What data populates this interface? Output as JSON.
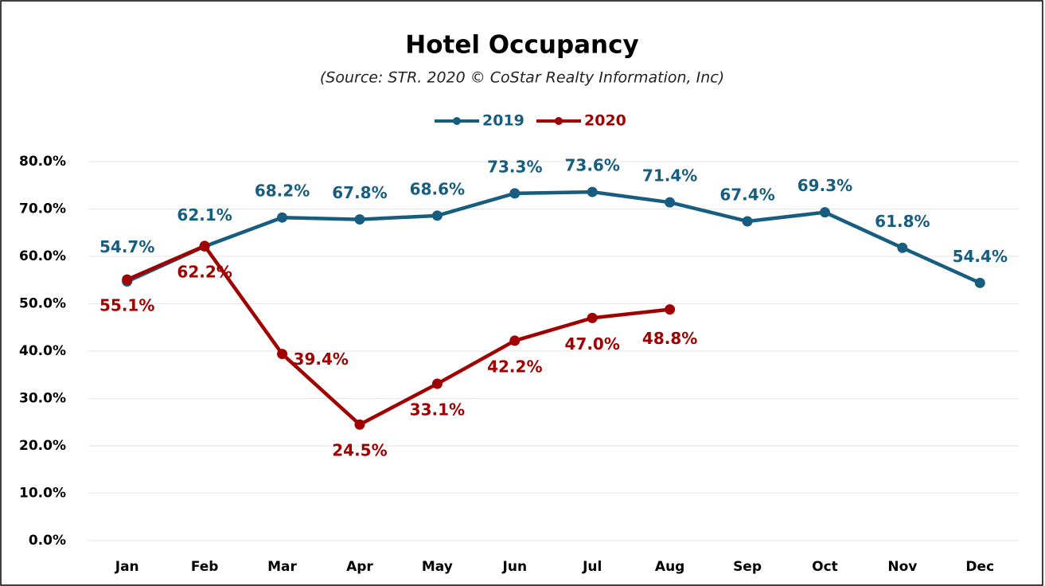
{
  "chart_data": {
    "type": "line",
    "title": "Hotel Occupancy",
    "subtitle": "(Source: STR. 2020 © CoStar Realty Information, Inc)",
    "categories": [
      "Jan",
      "Feb",
      "Mar",
      "Apr",
      "May",
      "Jun",
      "Jul",
      "Aug",
      "Sep",
      "Oct",
      "Nov",
      "Dec"
    ],
    "series": [
      {
        "name": "2019",
        "color": "#175d80",
        "values": [
          54.7,
          62.1,
          68.2,
          67.8,
          68.6,
          73.3,
          73.6,
          71.4,
          67.4,
          69.3,
          61.8,
          54.4
        ],
        "value_labels": [
          "54.7%",
          "62.1%",
          "68.2%",
          "67.8%",
          "68.6%",
          "73.3%",
          "73.6%",
          "71.4%",
          "67.4%",
          "69.3%",
          "61.8%",
          "54.4%"
        ]
      },
      {
        "name": "2020",
        "color": "#a00000",
        "values": [
          55.1,
          62.2,
          39.4,
          24.5,
          33.1,
          42.2,
          47.0,
          48.8,
          null,
          null,
          null,
          null
        ],
        "value_labels": [
          "55.1%",
          "62.2%",
          "39.4%",
          "24.5%",
          "33.1%",
          "42.2%",
          "47.0%",
          "48.8%",
          null,
          null,
          null,
          null
        ]
      }
    ],
    "ylim": [
      0,
      80
    ],
    "yticks": [
      {
        "value": 0,
        "label": "0.0%"
      },
      {
        "value": 10,
        "label": "10.0%"
      },
      {
        "value": 20,
        "label": "20.0%"
      },
      {
        "value": 30,
        "label": "30.0%"
      },
      {
        "value": 40,
        "label": "40.0%"
      },
      {
        "value": 50,
        "label": "50.0%"
      },
      {
        "value": 60,
        "label": "60.0%"
      },
      {
        "value": 70,
        "label": "70.0%"
      },
      {
        "value": 80,
        "label": "80.0%"
      }
    ],
    "grid": true,
    "legend": "top"
  }
}
